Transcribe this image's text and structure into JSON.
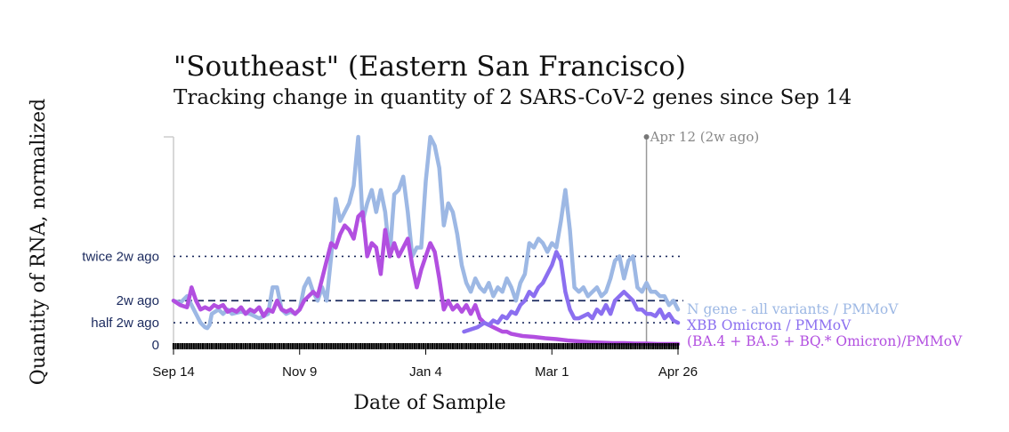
{
  "chart_data": {
    "type": "line",
    "title": "\"Southeast\" (Eastern San Francisco)",
    "subtitle": "Tracking change in quantity of 2 SARS-CoV-2 genes since Sep 14",
    "xlabel": "Date of Sample",
    "ylabel": "Quantity of RNA, normalized",
    "x_ticks": [
      "Sep 14",
      "Nov 9",
      "Jan 4",
      "Mar 1",
      "Apr 26"
    ],
    "x_tick_days": [
      0,
      56,
      112,
      168,
      224
    ],
    "xlim": [
      0,
      224
    ],
    "ylim": [
      0,
      4.7
    ],
    "y_ticks": [
      {
        "label": "twice 2w ago",
        "value": 2.0,
        "style": "dotted"
      },
      {
        "label": "2w ago",
        "value": 1.0,
        "style": "dashed"
      },
      {
        "label": "half 2w ago",
        "value": 0.5,
        "style": "dotted"
      },
      {
        "label": "0",
        "value": 0,
        "style": "none"
      }
    ],
    "annotation": {
      "label": "Apr 12 (2w ago)",
      "day": 210
    },
    "colors": {
      "n_gene": "#9db8e4",
      "xbb": "#8b6ff0",
      "ba": "#b24fe0",
      "ref_line": "#1b2a5e",
      "annotation": "#999999",
      "axis_text": "#1b2a5e"
    },
    "series": [
      {
        "key": "n_gene",
        "name": "N gene - all variants / PMMoV",
        "x": [
          0,
          3,
          6,
          9,
          12,
          14,
          15,
          16,
          17,
          20,
          22,
          24,
          26,
          30,
          34,
          38,
          42,
          44,
          46,
          48,
          50,
          52,
          54,
          56,
          58,
          60,
          62,
          64,
          66,
          68,
          70,
          72,
          74,
          76,
          78,
          80,
          82,
          84,
          86,
          88,
          90,
          92,
          94,
          96,
          98,
          100,
          102,
          104,
          106,
          108,
          110,
          112,
          114,
          116,
          118,
          120,
          122,
          124,
          126,
          128,
          130,
          132,
          134,
          136,
          138,
          140,
          142,
          144,
          146,
          148,
          150,
          152,
          154,
          156,
          158,
          160,
          162,
          164,
          166,
          168,
          170,
          172,
          174,
          176,
          178,
          180,
          182,
          184,
          186,
          188,
          190,
          192,
          194,
          196,
          198,
          200,
          202,
          204,
          206,
          208,
          210,
          212,
          214,
          216,
          218,
          220,
          222,
          224
        ],
        "y": [
          1.0,
          0.95,
          1.1,
          0.8,
          0.5,
          0.4,
          0.38,
          0.45,
          0.7,
          0.8,
          0.7,
          0.8,
          0.7,
          0.75,
          0.7,
          0.6,
          0.7,
          1.3,
          1.3,
          0.8,
          0.7,
          0.75,
          0.7,
          0.8,
          1.3,
          1.5,
          1.2,
          1.0,
          1.3,
          1.0,
          2.0,
          3.3,
          2.8,
          3.0,
          3.2,
          3.6,
          4.7,
          2.8,
          3.2,
          3.5,
          3.0,
          3.5,
          3.0,
          2.0,
          3.4,
          3.5,
          3.8,
          3.0,
          2.0,
          2.2,
          2.2,
          3.7,
          4.7,
          4.5,
          4.0,
          2.7,
          3.2,
          3.0,
          2.5,
          1.8,
          1.4,
          1.2,
          1.5,
          1.3,
          1.2,
          1.4,
          1.1,
          1.3,
          1.2,
          1.5,
          1.3,
          1.0,
          1.4,
          1.6,
          2.3,
          2.2,
          2.4,
          2.3,
          2.1,
          2.3,
          2.2,
          2.8,
          3.5,
          2.6,
          1.3,
          1.2,
          1.3,
          1.1,
          1.2,
          1.3,
          1.1,
          1.2,
          1.5,
          1.9,
          2.0,
          1.5,
          1.9,
          2.0,
          1.3,
          1.2,
          1.4,
          1.2,
          1.2,
          1.1,
          1.1,
          0.9,
          1.0,
          0.8
        ]
      },
      {
        "key": "xbb",
        "name": "XBB Omicron / PMMoV",
        "x": [
          129,
          132,
          135,
          138,
          140,
          142,
          144,
          146,
          148,
          150,
          152,
          154,
          156,
          158,
          160,
          162,
          164,
          166,
          168,
          170,
          172,
          174,
          176,
          178,
          180,
          182,
          184,
          186,
          188,
          190,
          192,
          194,
          196,
          198,
          200,
          202,
          204,
          206,
          208,
          210,
          212,
          214,
          216,
          218,
          220,
          222,
          224
        ],
        "y": [
          0.3,
          0.35,
          0.4,
          0.5,
          0.45,
          0.55,
          0.5,
          0.65,
          0.6,
          0.75,
          0.7,
          0.9,
          1.0,
          1.2,
          1.1,
          1.3,
          1.4,
          1.6,
          1.8,
          2.1,
          1.9,
          1.2,
          0.8,
          0.6,
          0.6,
          0.65,
          0.7,
          0.6,
          0.8,
          0.7,
          0.9,
          0.7,
          1.0,
          1.1,
          1.2,
          1.1,
          1.0,
          0.8,
          0.8,
          0.7,
          0.7,
          0.65,
          0.8,
          0.6,
          0.7,
          0.55,
          0.5
        ]
      },
      {
        "key": "ba",
        "name": "(BA.4 + BA.5 + BQ.* Omicron)/PMMoV",
        "x": [
          0,
          3,
          6,
          8,
          10,
          12,
          14,
          16,
          18,
          20,
          22,
          24,
          26,
          28,
          30,
          32,
          34,
          36,
          38,
          40,
          42,
          44,
          46,
          48,
          50,
          52,
          54,
          56,
          58,
          60,
          62,
          64,
          66,
          68,
          70,
          72,
          74,
          76,
          78,
          80,
          82,
          84,
          86,
          88,
          90,
          92,
          94,
          96,
          98,
          100,
          102,
          104,
          106,
          108,
          110,
          112,
          114,
          116,
          118,
          120,
          122,
          124,
          126,
          128,
          130,
          132,
          134,
          136,
          138,
          140,
          142,
          144,
          146,
          148,
          150,
          155,
          160,
          165,
          170,
          175,
          180,
          185,
          190,
          195,
          200,
          205,
          210,
          215,
          220,
          224
        ],
        "y": [
          1.0,
          0.9,
          0.85,
          1.3,
          1.0,
          0.8,
          0.85,
          0.8,
          0.9,
          0.85,
          0.9,
          0.75,
          0.8,
          0.75,
          0.85,
          0.7,
          0.8,
          0.75,
          0.85,
          0.65,
          0.8,
          0.75,
          1.0,
          0.8,
          0.75,
          0.8,
          0.7,
          0.8,
          1.0,
          1.1,
          1.2,
          1.1,
          1.5,
          1.9,
          2.3,
          2.2,
          2.5,
          2.7,
          2.6,
          2.4,
          2.9,
          3.0,
          2.0,
          2.3,
          2.2,
          1.6,
          2.6,
          2.0,
          2.3,
          2.0,
          2.2,
          2.4,
          1.8,
          1.3,
          1.7,
          2.0,
          2.3,
          2.1,
          1.5,
          0.8,
          1.0,
          0.8,
          0.9,
          0.75,
          0.9,
          0.7,
          0.9,
          0.6,
          0.5,
          0.45,
          0.4,
          0.35,
          0.3,
          0.3,
          0.25,
          0.2,
          0.18,
          0.15,
          0.13,
          0.1,
          0.08,
          0.06,
          0.05,
          0.04,
          0.04,
          0.03,
          0.03,
          0.02,
          0.02,
          0.02
        ]
      }
    ]
  }
}
